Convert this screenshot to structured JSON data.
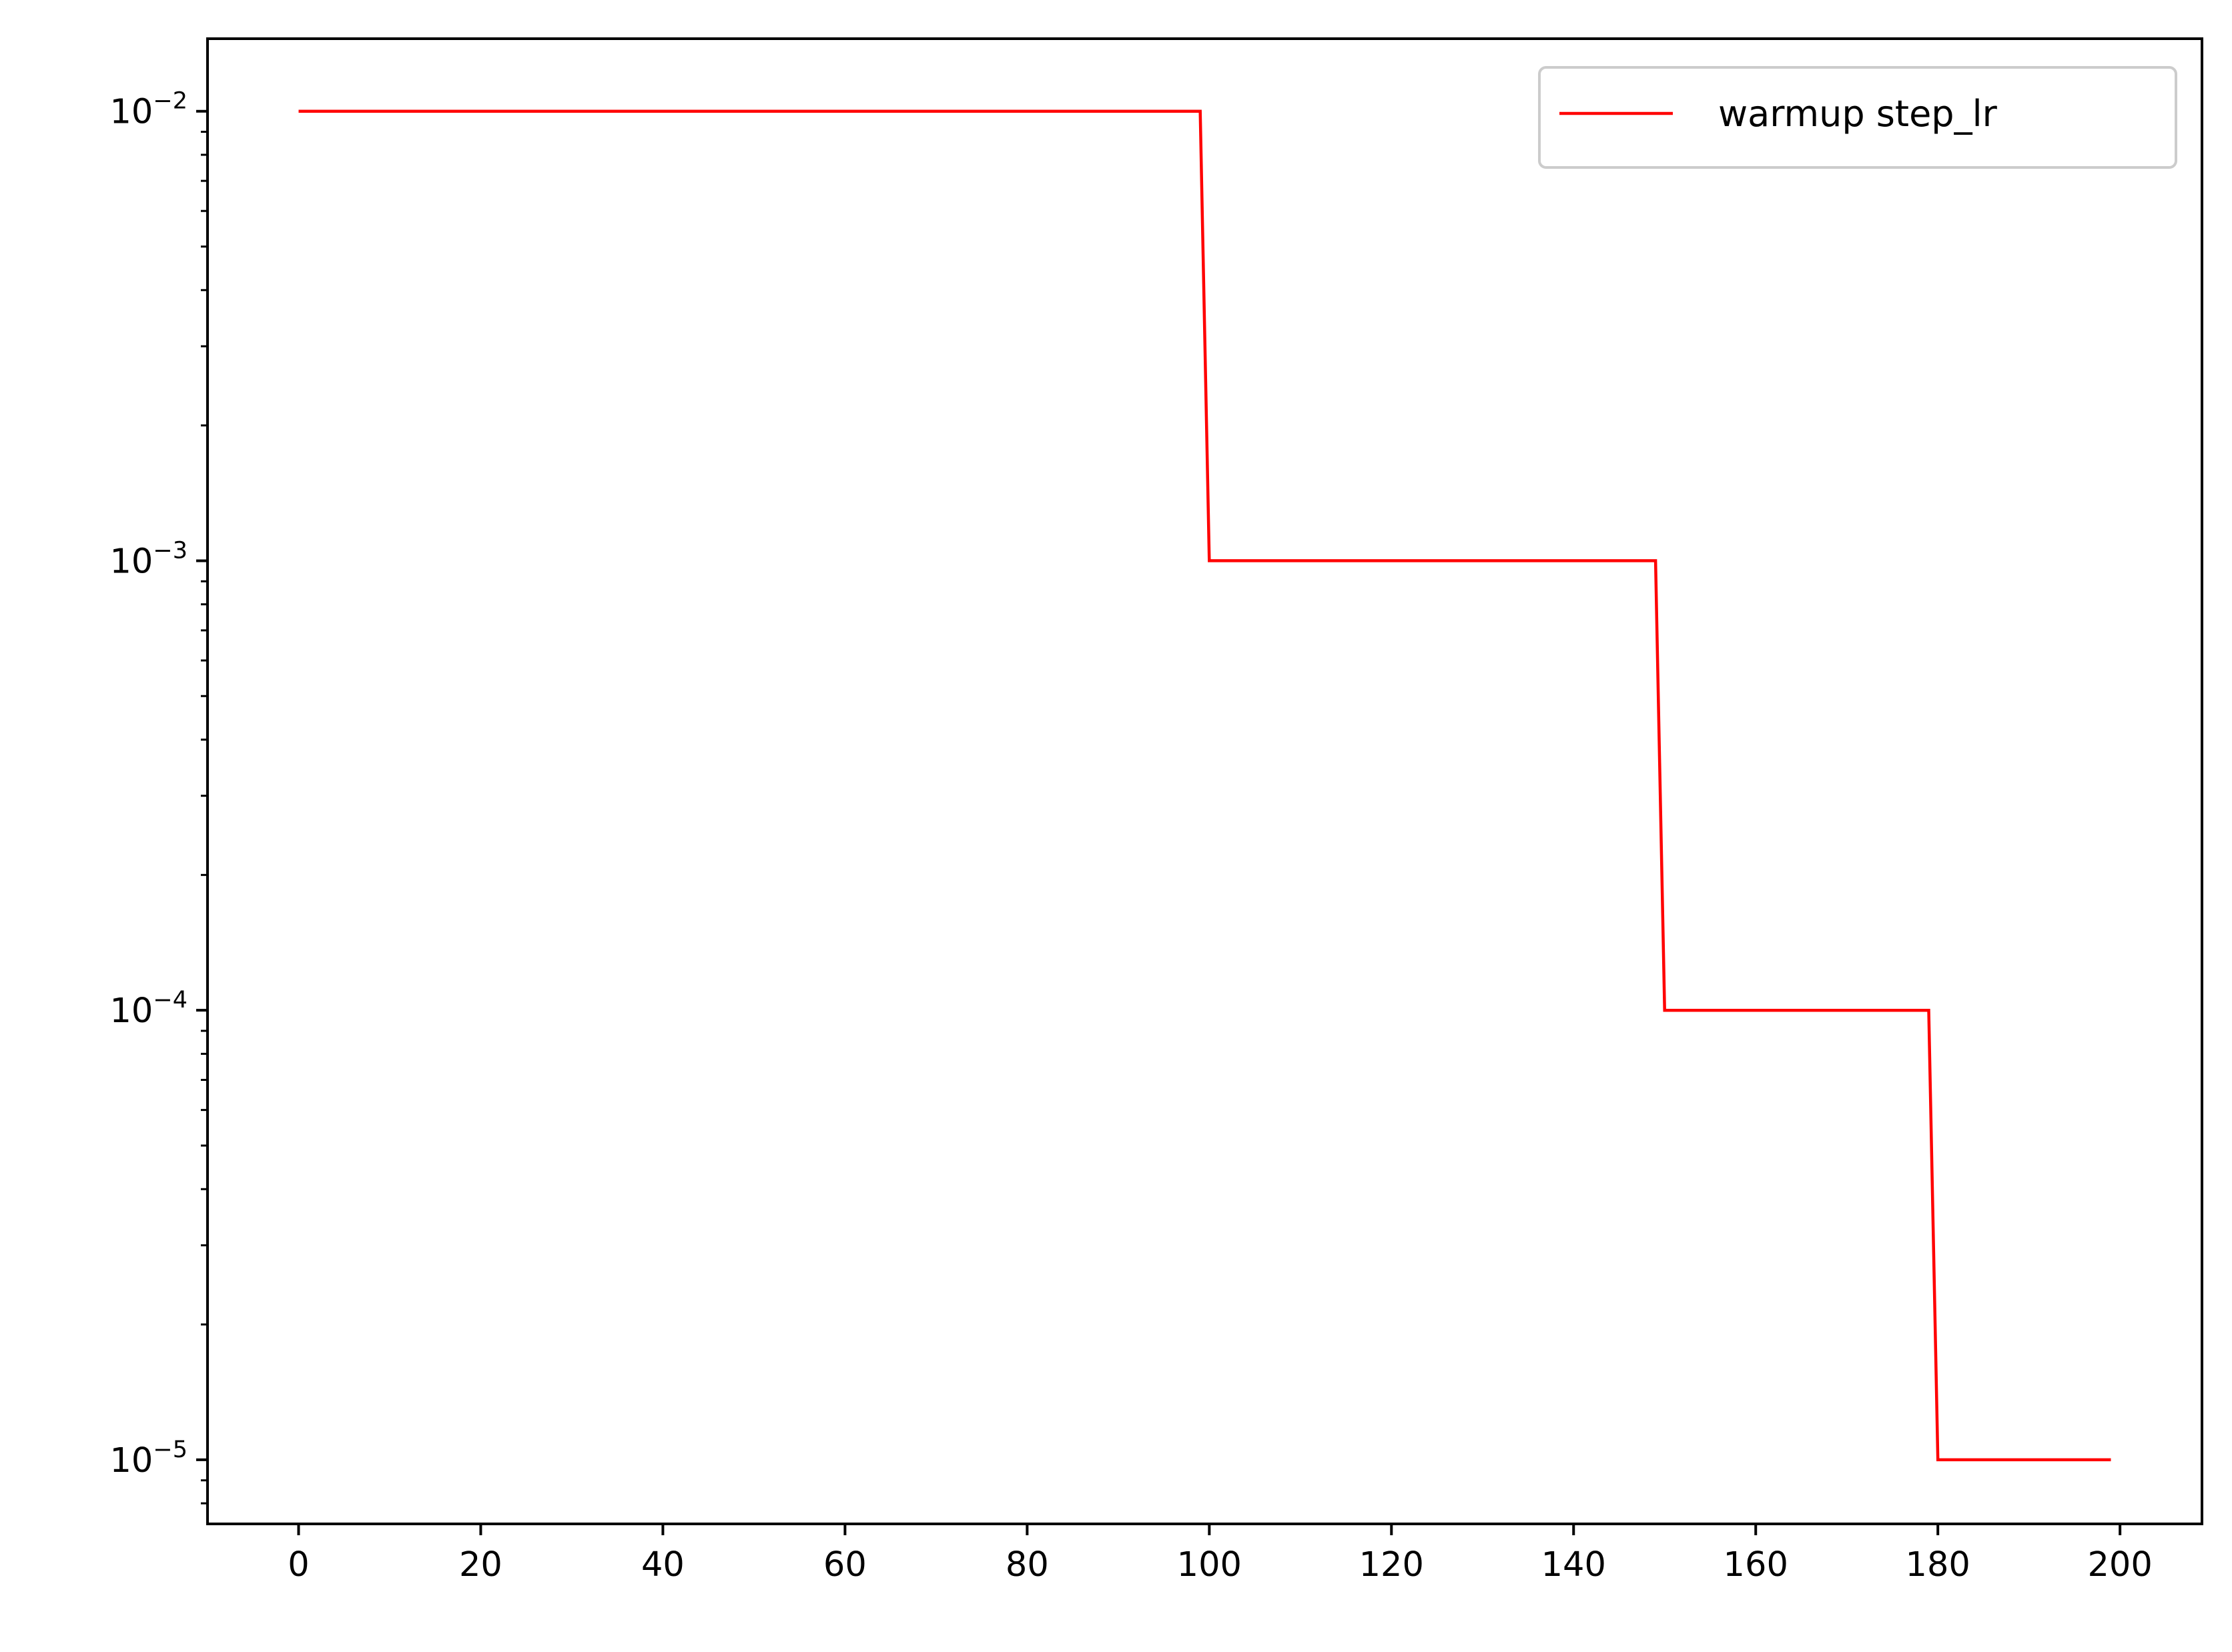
{
  "chart_data": {
    "type": "line",
    "title": "",
    "xlabel": "",
    "ylabel": "",
    "xlim": [
      -10,
      209
    ],
    "ylim": [
      7.2e-06,
      0.0145
    ],
    "yscale": "log",
    "grid": false,
    "legend_position": "top-right",
    "x_ticks": [
      0,
      20,
      40,
      60,
      80,
      100,
      120,
      140,
      160,
      180,
      200
    ],
    "x_tick_labels": [
      "0",
      "20",
      "40",
      "60",
      "80",
      "100",
      "120",
      "140",
      "160",
      "180",
      "200"
    ],
    "y_major_ticks": [
      {
        "value": 0.01,
        "base": "10",
        "exponent": "−2"
      },
      {
        "value": 0.001,
        "base": "10",
        "exponent": "−3"
      },
      {
        "value": 0.0001,
        "base": "10",
        "exponent": "−4"
      },
      {
        "value": 1e-05,
        "base": "10",
        "exponent": "−5"
      }
    ],
    "series": [
      {
        "name": "warmup step_lr",
        "color": "#ff0000",
        "points": [
          {
            "x": 0,
            "y": 0.01
          },
          {
            "x": 99,
            "y": 0.01
          },
          {
            "x": 100,
            "y": 0.001
          },
          {
            "x": 149,
            "y": 0.001
          },
          {
            "x": 150,
            "y": 0.0001
          },
          {
            "x": 179,
            "y": 0.0001
          },
          {
            "x": 180,
            "y": 1e-05
          },
          {
            "x": 199,
            "y": 1e-05
          }
        ]
      }
    ]
  }
}
